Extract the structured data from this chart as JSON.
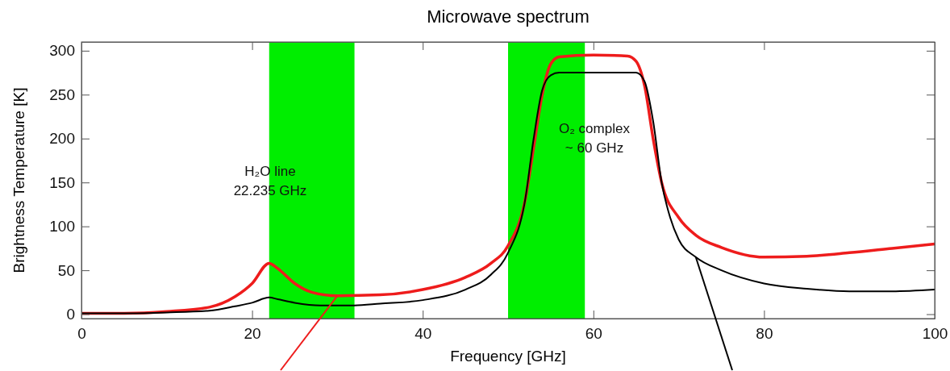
{
  "chart_data": {
    "type": "line",
    "title": "Microwave spectrum",
    "xlabel": "Frequency [GHz]",
    "ylabel": "Brightness Temperature [K]",
    "xlim": [
      0,
      100
    ],
    "xticks": [
      0,
      20,
      40,
      60,
      80,
      100
    ],
    "ylim": [
      -5,
      310
    ],
    "yticks": [
      0,
      50,
      100,
      150,
      200,
      250,
      300
    ],
    "grid": false,
    "marker": "none",
    "line_style": "solid",
    "bands": [
      {
        "axis": "x",
        "from": 22,
        "to": 32,
        "color": "#00ee00"
      },
      {
        "axis": "x",
        "from": 50,
        "to": 59,
        "color": "#00ee00"
      }
    ],
    "annotations": [
      "H₂O line\n22.235 GHz",
      "O₂ complex\n~ 60 GHz"
    ],
    "series": [
      {
        "color": "#ee1c1c",
        "x": [
          0,
          5,
          10,
          15,
          18,
          20,
          22,
          23,
          25,
          27,
          30,
          35,
          40,
          45,
          48,
          50,
          52,
          53,
          54,
          55,
          56,
          60,
          64,
          65,
          66,
          67,
          68,
          70,
          72,
          75,
          80,
          85,
          90,
          95,
          100
        ],
        "values": [
          1,
          1,
          3,
          8,
          20,
          35,
          58,
          52,
          35,
          25,
          21,
          22,
          28,
          42,
          58,
          78,
          130,
          190,
          250,
          285,
          293,
          295,
          294,
          288,
          260,
          200,
          150,
          110,
          90,
          76,
          65,
          66,
          70,
          75,
          80
        ]
      },
      {
        "color": "#000000",
        "x": [
          0,
          5,
          10,
          15,
          18,
          20,
          22,
          23,
          25,
          28,
          32,
          35,
          40,
          45,
          48,
          50,
          52,
          53,
          54,
          55,
          56,
          60,
          65,
          66,
          67,
          68,
          69,
          70,
          72,
          75,
          80,
          85,
          90,
          95,
          100
        ],
        "values": [
          1,
          1,
          2,
          4,
          9,
          13,
          19,
          17,
          13,
          10,
          10,
          12,
          16,
          28,
          45,
          70,
          130,
          200,
          255,
          272,
          275,
          275,
          275,
          265,
          220,
          150,
          110,
          85,
          65,
          50,
          35,
          29,
          26,
          26,
          28
        ]
      }
    ]
  }
}
